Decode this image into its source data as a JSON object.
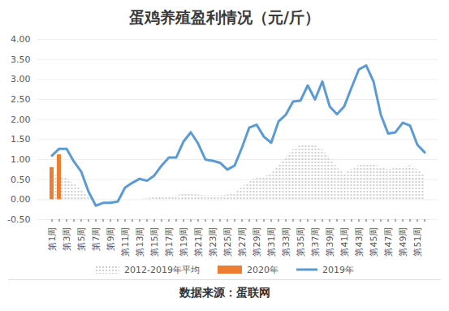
{
  "chart_data": {
    "type": "line",
    "title": "蛋鸡养殖盈利情况（元/斤）",
    "source": "数据来源：蛋联网",
    "categories": [
      "第1周",
      null,
      "第3周",
      null,
      "第5周",
      null,
      "第7周",
      null,
      "第9周",
      null,
      "第11周",
      null,
      "第13周",
      null,
      "第15周",
      null,
      "第17周",
      null,
      "第19周",
      null,
      "第21周",
      null,
      "第23周",
      null,
      "第25周",
      null,
      "第27周",
      null,
      "第29周",
      null,
      "第31周",
      null,
      "第33周",
      null,
      "第35周",
      null,
      "第37周",
      null,
      "第39周",
      null,
      "第41周",
      null,
      "第43周",
      null,
      "第45周",
      null,
      "第47周",
      null,
      "第49周",
      null,
      "第51周",
      null
    ],
    "series": [
      {
        "name": "2012-2019年平均",
        "type": "area",
        "color": "#bfbfbf",
        "values": [
          0.6,
          0.6,
          0.55,
          0.4,
          0.25,
          0.1,
          0.0,
          -0.02,
          -0.05,
          -0.03,
          0.0,
          0.0,
          0.0,
          0.02,
          0.05,
          0.05,
          0.08,
          0.1,
          0.15,
          0.15,
          0.12,
          0.1,
          0.1,
          0.1,
          0.12,
          0.15,
          0.3,
          0.45,
          0.55,
          0.55,
          0.65,
          0.85,
          1.05,
          1.25,
          1.35,
          1.38,
          1.35,
          1.25,
          1.05,
          0.8,
          0.65,
          0.75,
          0.85,
          0.9,
          0.88,
          0.8,
          0.75,
          0.78,
          0.8,
          0.85,
          0.75,
          0.62
        ]
      },
      {
        "name": "2020年",
        "type": "bar",
        "color": "#ed7d31",
        "values": [
          0.8,
          1.12,
          null,
          null,
          null,
          null,
          null,
          null,
          null,
          null,
          null,
          null,
          null,
          null,
          null,
          null,
          null,
          null,
          null,
          null,
          null,
          null,
          null,
          null,
          null,
          null,
          null,
          null,
          null,
          null,
          null,
          null,
          null,
          null,
          null,
          null,
          null,
          null,
          null,
          null,
          null,
          null,
          null,
          null,
          null,
          null,
          null,
          null,
          null,
          null,
          null,
          null
        ]
      },
      {
        "name": "2019年",
        "type": "line",
        "color": "#5b9bd5",
        "values": [
          1.1,
          1.27,
          1.27,
          0.95,
          0.7,
          0.2,
          -0.15,
          -0.08,
          -0.08,
          -0.05,
          0.3,
          0.42,
          0.52,
          0.47,
          0.6,
          0.85,
          1.05,
          1.05,
          1.45,
          1.68,
          1.4,
          1.0,
          0.97,
          0.92,
          0.75,
          0.85,
          1.3,
          1.8,
          1.87,
          1.57,
          1.42,
          1.95,
          2.12,
          2.45,
          2.47,
          2.85,
          2.5,
          2.95,
          2.33,
          2.13,
          2.33,
          2.8,
          3.25,
          3.35,
          2.95,
          2.12,
          1.65,
          1.68,
          1.92,
          1.85,
          1.37,
          1.18
        ]
      }
    ],
    "ylim": [
      -0.5,
      4
    ],
    "yticks": [
      {
        "value": -0.5,
        "label": "-0.50"
      },
      {
        "value": 0,
        "label": "0.00"
      },
      {
        "value": 0.5,
        "label": "0.50"
      },
      {
        "value": 1,
        "label": "1.00"
      },
      {
        "value": 1.5,
        "label": "1.50"
      },
      {
        "value": 2,
        "label": "2.00"
      },
      {
        "value": 2.5,
        "label": "2.50"
      },
      {
        "value": 3,
        "label": "3.00"
      },
      {
        "value": 3.5,
        "label": "3.50"
      },
      {
        "value": 4,
        "label": "4.00"
      }
    ],
    "grid": true,
    "legend": "bottom"
  }
}
